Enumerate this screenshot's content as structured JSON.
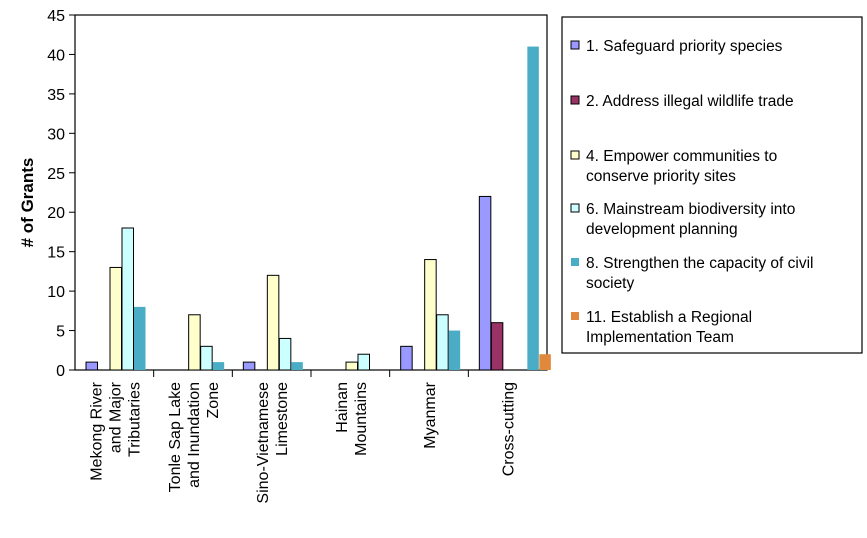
{
  "chart_data": {
    "type": "bar",
    "ylabel": "# of Grants",
    "xlabel": "",
    "ylim": [
      0,
      45
    ],
    "yticks": [
      0,
      5,
      10,
      15,
      20,
      25,
      30,
      35,
      40,
      45
    ],
    "grid": false,
    "legend_position": "right",
    "categories": [
      [
        "Mekong River",
        "and Major",
        "Tributaries"
      ],
      [
        "Tonle Sap Lake",
        "and Inundation",
        "Zone"
      ],
      [
        "Sino-Vietnamese",
        "Limestone"
      ],
      [
        "Hainan",
        "Mountains"
      ],
      [
        "Myanmar"
      ],
      [
        "Cross-cutting"
      ]
    ],
    "series": [
      {
        "name": [
          "1. Safeguard priority species"
        ],
        "color": "#9999FF",
        "values": [
          1,
          0,
          1,
          0,
          3,
          22
        ]
      },
      {
        "name": [
          "2. Address illegal wildlife trade"
        ],
        "color": "#993366",
        "values": [
          0,
          0,
          0,
          0,
          0,
          6
        ]
      },
      {
        "name": [
          "4. Empower communities to",
          "conserve priority sites"
        ],
        "color": "#FFFFCC",
        "values": [
          13,
          7,
          12,
          1,
          14,
          0
        ]
      },
      {
        "name": [
          "6. Mainstream biodiversity into",
          "development planning"
        ],
        "color": "#CCFFFF",
        "values": [
          18,
          3,
          4,
          2,
          7,
          0
        ]
      },
      {
        "name": [
          "8. Strengthen the capacity of civil",
          "society"
        ],
        "color": "#4BACC6",
        "values": [
          8,
          1,
          1,
          0,
          5,
          41
        ]
      },
      {
        "name": [
          "11. Establish a Regional",
          "Implementation Team"
        ],
        "color": "#E0883C",
        "values": [
          0,
          0,
          0,
          0,
          0,
          2
        ]
      }
    ]
  }
}
